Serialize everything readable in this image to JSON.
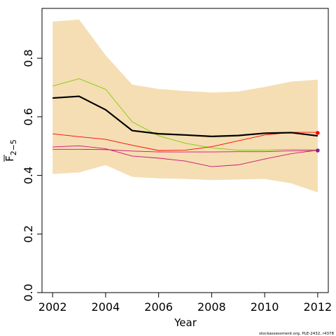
{
  "chart_data": {
    "type": "line",
    "xlabel": "Year",
    "ylabel": {
      "base": "F",
      "sub": "2−5"
    },
    "xlim": [
      2001.6,
      2012.4
    ],
    "ylim": [
      0.0,
      0.97
    ],
    "x_ticks": [
      "2002",
      "2004",
      "2006",
      "2008",
      "2010",
      "2012"
    ],
    "y_ticks": [
      "0.0",
      "0.2",
      "0.4",
      "0.6",
      "0.8"
    ],
    "x": [
      2002,
      2003,
      2004,
      2005,
      2006,
      2007,
      2008,
      2009,
      2010,
      2011,
      2012
    ],
    "band": {
      "fill": "#f5deb3",
      "upper": [
        0.925,
        0.932,
        0.81,
        0.71,
        0.695,
        0.688,
        0.683,
        0.686,
        0.702,
        0.72,
        0.727
      ],
      "lower": [
        0.405,
        0.41,
        0.435,
        0.395,
        0.39,
        0.388,
        0.384,
        0.386,
        0.388,
        0.373,
        0.342
      ]
    },
    "series": [
      {
        "color": "#000000",
        "width": 2.2,
        "values": [
          0.664,
          0.67,
          0.624,
          0.553,
          0.542,
          0.538,
          0.533,
          0.536,
          0.544,
          0.546,
          0.535
        ]
      },
      {
        "color": "#7ccd00",
        "width": 0.9,
        "values": [
          0.705,
          0.73,
          0.694,
          0.583,
          0.535,
          0.51,
          0.494,
          0.486,
          0.486,
          0.489,
          0.487
        ]
      },
      {
        "color": "#ff0000",
        "width": 0.9,
        "values": [
          0.542,
          0.532,
          0.523,
          0.503,
          0.485,
          0.486,
          0.498,
          0.518,
          0.538,
          0.547,
          0.547
        ]
      },
      {
        "color": "#cd1076",
        "width": 0.9,
        "values": [
          0.497,
          0.501,
          0.491,
          0.466,
          0.459,
          0.449,
          0.43,
          0.436,
          0.456,
          0.474,
          0.486
        ]
      },
      {
        "color": "#cd1076",
        "width": 0.9,
        "values": [
          0.489,
          0.489,
          0.488,
          0.483,
          0.48,
          0.48,
          0.48,
          0.481,
          0.481,
          0.484,
          0.485
        ]
      }
    ],
    "end_points": [
      {
        "color": "#ff0000",
        "x": 2012,
        "y": 0.545
      },
      {
        "color": "#8b1a89",
        "x": 2012,
        "y": 0.485
      }
    ],
    "credit": "stockassessment.org, PLE-2432, r4378"
  }
}
